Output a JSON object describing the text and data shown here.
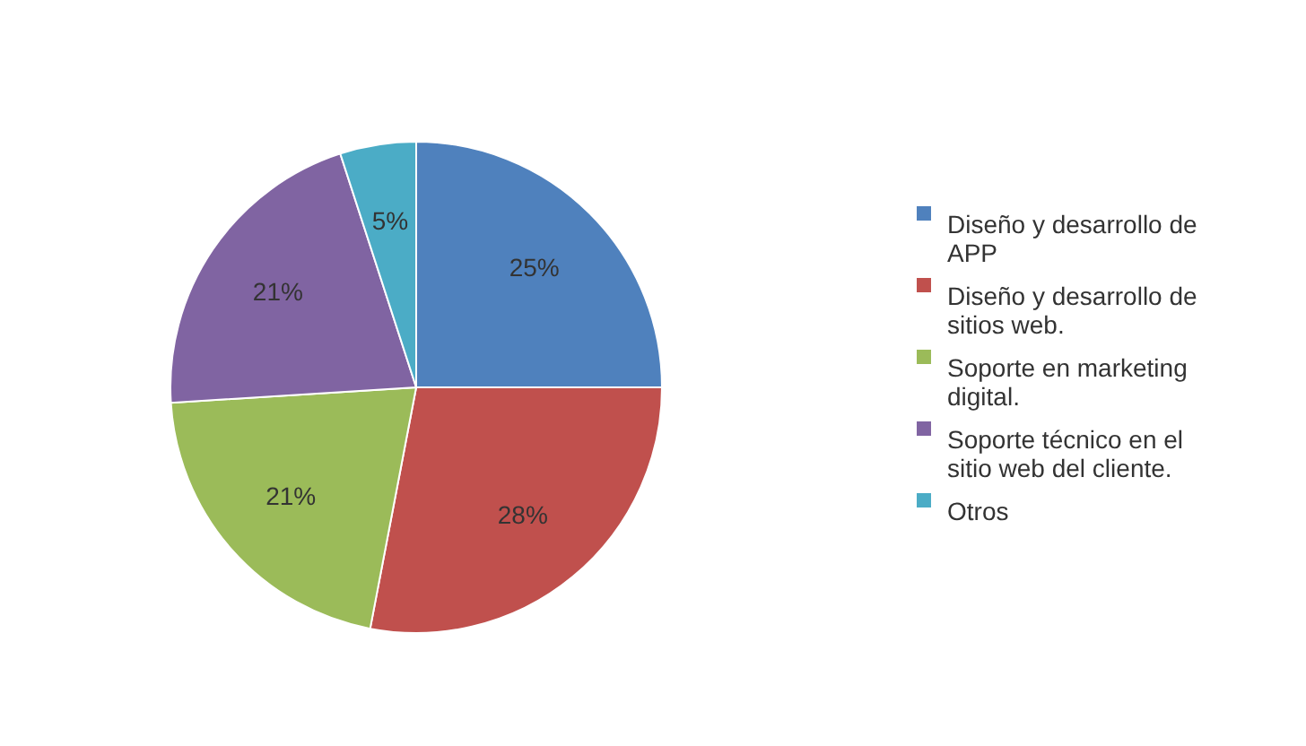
{
  "chart_data": {
    "type": "pie",
    "categories": [
      "Diseño y desarrollo de APP",
      "Diseño y desarrollo de sitios web.",
      "Soporte en marketing digital.",
      "Soporte técnico en el sitio web del cliente.",
      "Otros"
    ],
    "values": [
      25,
      28,
      21,
      21,
      5
    ],
    "colors": [
      "#4f81bd",
      "#c0504d",
      "#9bbb59",
      "#8064a2",
      "#4bacc6"
    ],
    "value_labels": [
      "25%",
      "28%",
      "21%",
      "21%",
      "5%"
    ],
    "legend": "right"
  }
}
